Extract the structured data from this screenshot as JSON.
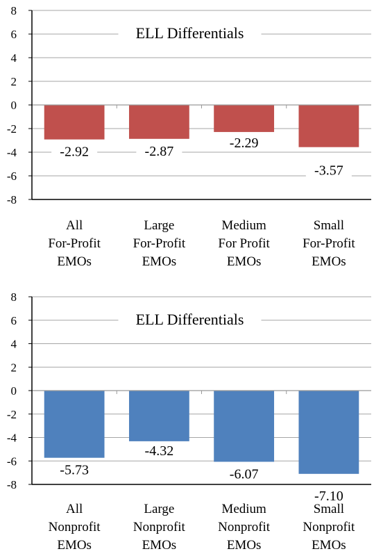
{
  "chart_data": [
    {
      "type": "bar",
      "title": "ELL Differentials",
      "categories": [
        [
          "All",
          "For-Profit",
          "EMOs"
        ],
        [
          "Large",
          "For-Profit",
          "EMOs"
        ],
        [
          "Medium",
          "For Profit",
          "EMOs"
        ],
        [
          "Small",
          "For-Profit",
          "EMOs"
        ]
      ],
      "values": [
        -2.92,
        -2.87,
        -2.29,
        -3.57
      ],
      "data_labels": [
        "-2.92",
        "-2.87",
        "-2.29",
        "-3.57"
      ],
      "ylim": [
        -8,
        8
      ],
      "yticks": [
        8,
        6,
        4,
        2,
        0,
        -2,
        -4,
        -6,
        -8
      ],
      "grid": true,
      "color": "#c0504d"
    },
    {
      "type": "bar",
      "title": "ELL Differentials",
      "categories": [
        [
          "All",
          "Nonprofit",
          "EMOs"
        ],
        [
          "Large",
          "Nonprofit",
          "EMOs"
        ],
        [
          "Medium",
          "Nonprofit",
          "EMOs"
        ],
        [
          "Small",
          "Nonprofit",
          "EMOs"
        ]
      ],
      "values": [
        -5.73,
        -4.32,
        -6.07,
        -7.1
      ],
      "data_labels": [
        "-5.73",
        "-4.32",
        "-6.07",
        "-7.10"
      ],
      "ylim": [
        -8,
        8
      ],
      "yticks": [
        8,
        6,
        4,
        2,
        0,
        -2,
        -4,
        -6,
        -8
      ],
      "grid": true,
      "color": "#4f81bd"
    }
  ]
}
